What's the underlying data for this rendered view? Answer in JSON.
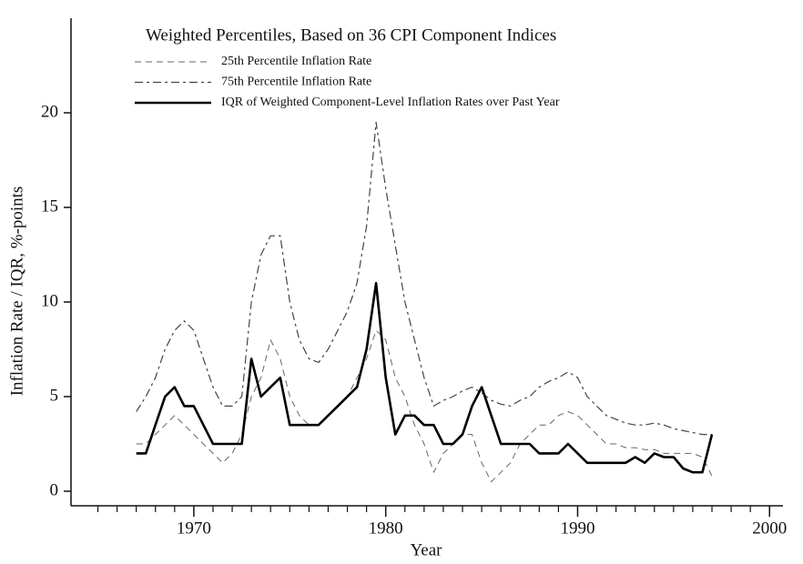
{
  "chart_data": {
    "type": "line",
    "title": "Weighted Percentiles, Based on 36 CPI Component Indices",
    "x_label": "Year",
    "y_label": "Inflation Rate / IQR, %-points",
    "x": [
      1967,
      1967.5,
      1968,
      1968.5,
      1969,
      1969.5,
      1970,
      1970.5,
      1971,
      1971.5,
      1972,
      1972.5,
      1973,
      1973.5,
      1974,
      1974.5,
      1975,
      1975.5,
      1976,
      1976.5,
      1977,
      1977.5,
      1978,
      1978.5,
      1979,
      1979.5,
      1980,
      1980.5,
      1981,
      1981.5,
      1982,
      1982.5,
      1983,
      1983.5,
      1984,
      1984.5,
      1985,
      1985.5,
      1986,
      1986.5,
      1987,
      1987.5,
      1988,
      1988.5,
      1989,
      1989.5,
      1990,
      1990.5,
      1991,
      1991.5,
      1992,
      1992.5,
      1993,
      1993.5,
      1994,
      1994.5,
      1995,
      1995.5,
      1996,
      1996.5,
      1997
    ],
    "series": [
      {
        "name": "25th Percentile Inflation Rate",
        "color": "#666666",
        "dash": "7,5",
        "width": 1,
        "values": [
          2.5,
          2.5,
          3,
          3.5,
          4,
          3.5,
          3,
          2.5,
          2,
          1.5,
          2,
          3,
          5,
          6,
          8,
          7,
          5,
          4,
          3.5,
          3.5,
          4,
          4.5,
          5,
          6,
          7,
          8.5,
          8,
          6,
          5,
          3.5,
          2.5,
          1,
          2,
          2.5,
          3,
          3,
          1.5,
          0.5,
          1,
          1.5,
          2.5,
          3,
          3.5,
          3.5,
          4,
          4.2,
          4,
          3.5,
          3,
          2.5,
          2.5,
          2.3,
          2.3,
          2.2,
          2.2,
          2,
          2,
          2,
          2,
          1.8,
          0.8
        ]
      },
      {
        "name": "75th Percentile Inflation Rate",
        "color": "#444444",
        "dash": "9,4,3,4",
        "width": 1.2,
        "values": [
          4.2,
          5,
          6,
          7.5,
          8.5,
          9,
          8.5,
          7,
          5.5,
          4.5,
          4.5,
          5,
          10,
          12.5,
          13.5,
          13.5,
          10,
          8,
          7,
          6.8,
          7.5,
          8.5,
          9.5,
          11,
          14,
          19.5,
          16,
          13,
          10,
          8,
          6,
          4.5,
          4.8,
          5,
          5.3,
          5.5,
          5.2,
          4.8,
          4.6,
          4.5,
          4.8,
          5,
          5.5,
          5.8,
          6,
          6.3,
          6,
          5,
          4.5,
          4,
          3.8,
          3.6,
          3.5,
          3.5,
          3.6,
          3.5,
          3.3,
          3.2,
          3.1,
          3,
          3
        ]
      },
      {
        "name": "IQR of Weighted Component-Level Inflation Rates over Past Year",
        "color": "#000000",
        "dash": "none",
        "width": 2.6,
        "values": [
          2,
          2,
          3.5,
          5,
          5.5,
          4.5,
          4.5,
          3.5,
          2.5,
          2.5,
          2.5,
          2.5,
          7,
          5,
          5.5,
          6,
          3.5,
          3.5,
          3.5,
          3.5,
          4,
          4.5,
          5,
          5.5,
          7.5,
          11,
          6,
          3,
          4,
          4,
          3.5,
          3.5,
          2.5,
          2.5,
          3,
          4.5,
          5.5,
          4,
          2.5,
          2.5,
          2.5,
          2.5,
          2,
          2,
          2,
          2.5,
          2,
          1.5,
          1.5,
          1.5,
          1.5,
          1.5,
          1.8,
          1.5,
          2,
          1.8,
          1.8,
          1.2,
          1,
          1,
          3
        ]
      }
    ],
    "xlim": [
      1963.6,
      2000.7
    ],
    "ylim": [
      -0.77,
      25
    ],
    "xticks": [
      1970,
      1980,
      1990,
      2000
    ],
    "xminorticks": [
      1965,
      1966,
      1967,
      1968,
      1969,
      1971,
      1972,
      1973,
      1974,
      1975,
      1976,
      1977,
      1978,
      1979,
      1981,
      1982,
      1983,
      1984,
      1985,
      1986,
      1987,
      1988,
      1989,
      1991,
      1992,
      1993,
      1994,
      1995,
      1996,
      1997,
      1998,
      1999
    ],
    "yticks": [
      0,
      5,
      10,
      15,
      20
    ],
    "grid": false
  }
}
